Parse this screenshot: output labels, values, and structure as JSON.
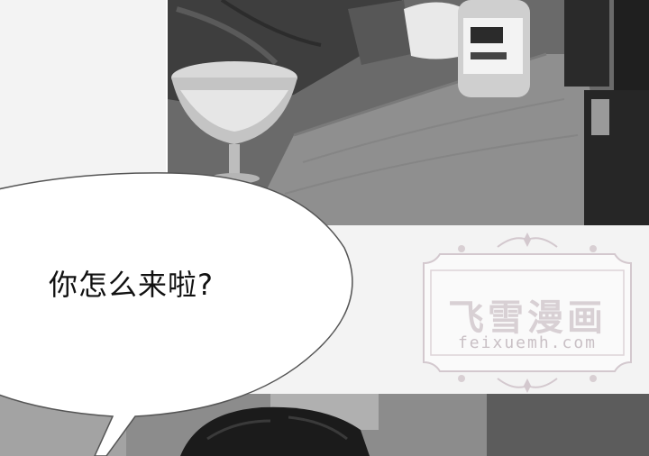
{
  "dialogue": {
    "line": "你怎么来啦?"
  },
  "watermark": {
    "title": "飞雪漫画",
    "url": "feixuemh.com"
  }
}
